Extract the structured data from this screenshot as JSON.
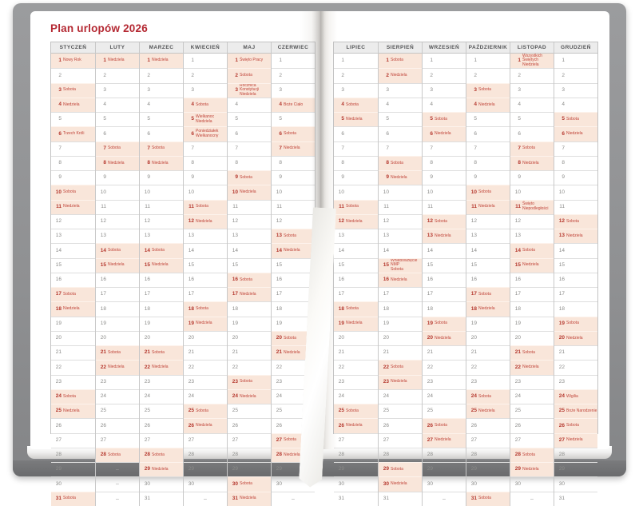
{
  "title": "Plan urlopów 2026",
  "dash": "–",
  "colors": {
    "accent_red": "#b42832",
    "holiday_text": "#c0453a",
    "highlight_bg": "#f9e6da",
    "header_bg": "#ececec",
    "cover_gray": "#8f9092"
  },
  "pages": [
    {
      "side": "left",
      "months": [
        {
          "name": "STYCZEŃ",
          "days": [
            "1|Nowy Rok",
            "2",
            "3|Sobota",
            "4|Niedziela",
            "5",
            "6|Trzech Króli",
            "7",
            "8",
            "9",
            "10|Sobota",
            "11|Niedziela",
            "12",
            "13",
            "14",
            "15",
            "16",
            "17|Sobota",
            "18|Niedziela",
            "19",
            "20",
            "21",
            "22",
            "23",
            "24|Sobota",
            "25|Niedziela",
            "26",
            "27",
            "28",
            "29",
            "30",
            "31|Sobota"
          ]
        },
        {
          "name": "LUTY",
          "days": [
            "1|Niedziela",
            "2",
            "3",
            "4",
            "5",
            "6",
            "7|Sobota",
            "8|Niedziela",
            "9",
            "10",
            "11",
            "12",
            "13",
            "14|Sobota",
            "15|Niedziela",
            "16",
            "17",
            "18",
            "19",
            "20",
            "21|Sobota",
            "22|Niedziela",
            "23",
            "24",
            "25",
            "26",
            "27",
            "28|Sobota",
            "-",
            "-",
            "-"
          ]
        },
        {
          "name": "MARZEC",
          "days": [
            "1|Niedziela",
            "2",
            "3",
            "4",
            "5",
            "6",
            "7|Sobota",
            "8|Niedziela",
            "9",
            "10",
            "11",
            "12",
            "13",
            "14|Sobota",
            "15|Niedziela",
            "16",
            "17",
            "18",
            "19",
            "20",
            "21|Sobota",
            "22|Niedziela",
            "23",
            "24",
            "25",
            "26",
            "27",
            "28|Sobota",
            "29|Niedziela",
            "30",
            "31"
          ]
        },
        {
          "name": "KWIECIEŃ",
          "days": [
            "1",
            "2",
            "3",
            "4|Sobota",
            "5|Wielkanoc\nNiedziela",
            "6|Poniedziałek\nWielkanocny",
            "7",
            "8",
            "9",
            "10",
            "11|Sobota",
            "12|Niedziela",
            "13",
            "14",
            "15",
            "16",
            "17",
            "18|Sobota",
            "19|Niedziela",
            "20",
            "21",
            "22",
            "23",
            "24",
            "25|Sobota",
            "26|Niedziela",
            "27",
            "28",
            "29",
            "30",
            "-"
          ]
        },
        {
          "name": "MAJ",
          "days": [
            "1|Święto Pracy",
            "2|Sobota",
            "3|Rocznica Konstytucji\nNiedziela",
            "4",
            "5",
            "6",
            "7",
            "8",
            "9|Sobota",
            "10|Niedziela",
            "11",
            "12",
            "13",
            "14",
            "15",
            "16|Sobota",
            "17|Niedziela",
            "18",
            "19",
            "20",
            "21",
            "22",
            "23|Sobota",
            "24|Niedziela",
            "25",
            "26",
            "27",
            "28",
            "29",
            "30|Sobota",
            "31|Niedziela"
          ]
        },
        {
          "name": "CZERWIEC",
          "days": [
            "1",
            "2",
            "3",
            "4|Boże Ciało",
            "5",
            "6|Sobota",
            "7|Niedziela",
            "8",
            "9",
            "10",
            "11",
            "12",
            "13|Sobota",
            "14|Niedziela",
            "15",
            "16",
            "17",
            "18",
            "19",
            "20|Sobota",
            "21|Niedziela",
            "22",
            "23",
            "24",
            "25",
            "26",
            "27|Sobota",
            "28|Niedziela",
            "29",
            "30",
            "-"
          ]
        }
      ]
    },
    {
      "side": "right",
      "months": [
        {
          "name": "LIPIEC",
          "days": [
            "1",
            "2",
            "3",
            "4|Sobota",
            "5|Niedziela",
            "6",
            "7",
            "8",
            "9",
            "10",
            "11|Sobota",
            "12|Niedziela",
            "13",
            "14",
            "15",
            "16",
            "17",
            "18|Sobota",
            "19|Niedziela",
            "20",
            "21",
            "22",
            "23",
            "24",
            "25|Sobota",
            "26|Niedziela",
            "27",
            "28",
            "29",
            "30",
            "31"
          ]
        },
        {
          "name": "SIERPIEŃ",
          "days": [
            "1|Sobota",
            "2|Niedziela",
            "3",
            "4",
            "5",
            "6",
            "7",
            "8|Sobota",
            "9|Niedziela",
            "10",
            "11",
            "12",
            "13",
            "14",
            "15|Wniebowzięcie NMP\nSobota",
            "16|Niedziela",
            "17",
            "18",
            "19",
            "20",
            "21",
            "22|Sobota",
            "23|Niedziela",
            "24",
            "25",
            "26",
            "27",
            "28",
            "29|Sobota",
            "30|Niedziela",
            "31"
          ]
        },
        {
          "name": "WRZESIEŃ",
          "days": [
            "1",
            "2",
            "3",
            "4",
            "5|Sobota",
            "6|Niedziela",
            "7",
            "8",
            "9",
            "10",
            "11",
            "12|Sobota",
            "13|Niedziela",
            "14",
            "15",
            "16",
            "17",
            "18",
            "19|Sobota",
            "20|Niedziela",
            "21",
            "22",
            "23",
            "24",
            "25",
            "26|Sobota",
            "27|Niedziela",
            "28",
            "29",
            "30",
            "-"
          ]
        },
        {
          "name": "PAŹDZIERNIK",
          "days": [
            "1",
            "2",
            "3|Sobota",
            "4|Niedziela",
            "5",
            "6",
            "7",
            "8",
            "9",
            "10|Sobota",
            "11|Niedziela",
            "12",
            "13",
            "14",
            "15",
            "16",
            "17|Sobota",
            "18|Niedziela",
            "19",
            "20",
            "21",
            "22",
            "23",
            "24|Sobota",
            "25|Niedziela",
            "26",
            "27",
            "28",
            "29",
            "30",
            "31|Sobota"
          ]
        },
        {
          "name": "LISTOPAD",
          "days": [
            "1|Wszystkich Świętych\nNiedziela",
            "2",
            "3",
            "4",
            "5",
            "6",
            "7|Sobota",
            "8|Niedziela",
            "9",
            "10",
            "11|Święto Niepodległości",
            "12",
            "13",
            "14|Sobota",
            "15|Niedziela",
            "16",
            "17",
            "18",
            "19",
            "20",
            "21|Sobota",
            "22|Niedziela",
            "23",
            "24",
            "25",
            "26",
            "27",
            "28|Sobota",
            "29|Niedziela",
            "30",
            "-"
          ]
        },
        {
          "name": "GRUDZIEŃ",
          "days": [
            "1",
            "2",
            "3",
            "4",
            "5|Sobota",
            "6|Niedziela",
            "7",
            "8",
            "9",
            "10",
            "11",
            "12|Sobota",
            "13|Niedziela",
            "14",
            "15",
            "16",
            "17",
            "18",
            "19|Sobota",
            "20|Niedziela",
            "21",
            "22",
            "23",
            "24|Wigilia",
            "25|Boże Narodzenie",
            "26|Sobota",
            "27|Niedziela",
            "28",
            "29",
            "30",
            "31"
          ]
        }
      ]
    }
  ]
}
